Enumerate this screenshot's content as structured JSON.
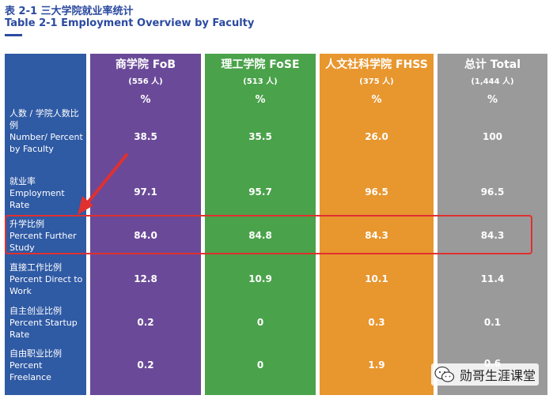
{
  "title": {
    "cn": "表 2-1 三大学院就业率统计",
    "en": "Table 2-1 Employment Overview by Faculty"
  },
  "columns": [
    {
      "name": "商学院 FoB",
      "count": "(556 人)",
      "unit": "%"
    },
    {
      "name": "理工学院 FoSE",
      "count": "(513 人)",
      "unit": "%"
    },
    {
      "name": "人文社科学院 FHSS",
      "count": "(375 人)",
      "unit": "%"
    },
    {
      "name": "总计 Total",
      "count": "(1,444 人)",
      "unit": "%"
    }
  ],
  "rows": [
    {
      "label_cn": "人数 / 学院人数比例",
      "label_en": "Number/ Percent by Faculty",
      "values": [
        "38.5",
        "35.5",
        "26.0",
        "100"
      ]
    },
    {
      "label_cn": "就业率",
      "label_en": "Employment Rate",
      "values": [
        "97.1",
        "95.7",
        "96.5",
        "96.5"
      ]
    },
    {
      "label_cn": "升学比例",
      "label_en": "Percent Further Study",
      "values": [
        "84.0",
        "84.8",
        "84.3",
        "84.3"
      ]
    },
    {
      "label_cn": "直接工作比例",
      "label_en": "Percent Direct to Work",
      "values": [
        "12.8",
        "10.9",
        "10.1",
        "11.4"
      ]
    },
    {
      "label_cn": "自主创业比例",
      "label_en": "Percent Startup Rate",
      "values": [
        "0.2",
        "0",
        "0.3",
        "0.1"
      ]
    },
    {
      "label_cn": "自由职业比例",
      "label_en": "Percent Freelance",
      "values": [
        "0.2",
        "0",
        "1.9",
        "0.6"
      ]
    }
  ],
  "watermark": "勋哥生涯课堂",
  "colors": {
    "label_col": "#2f5aa4",
    "fob": "#6a4a98",
    "fose": "#4aa24a",
    "fhss": "#e8962e",
    "total": "#9a9a9a",
    "highlight": "#e03030"
  }
}
